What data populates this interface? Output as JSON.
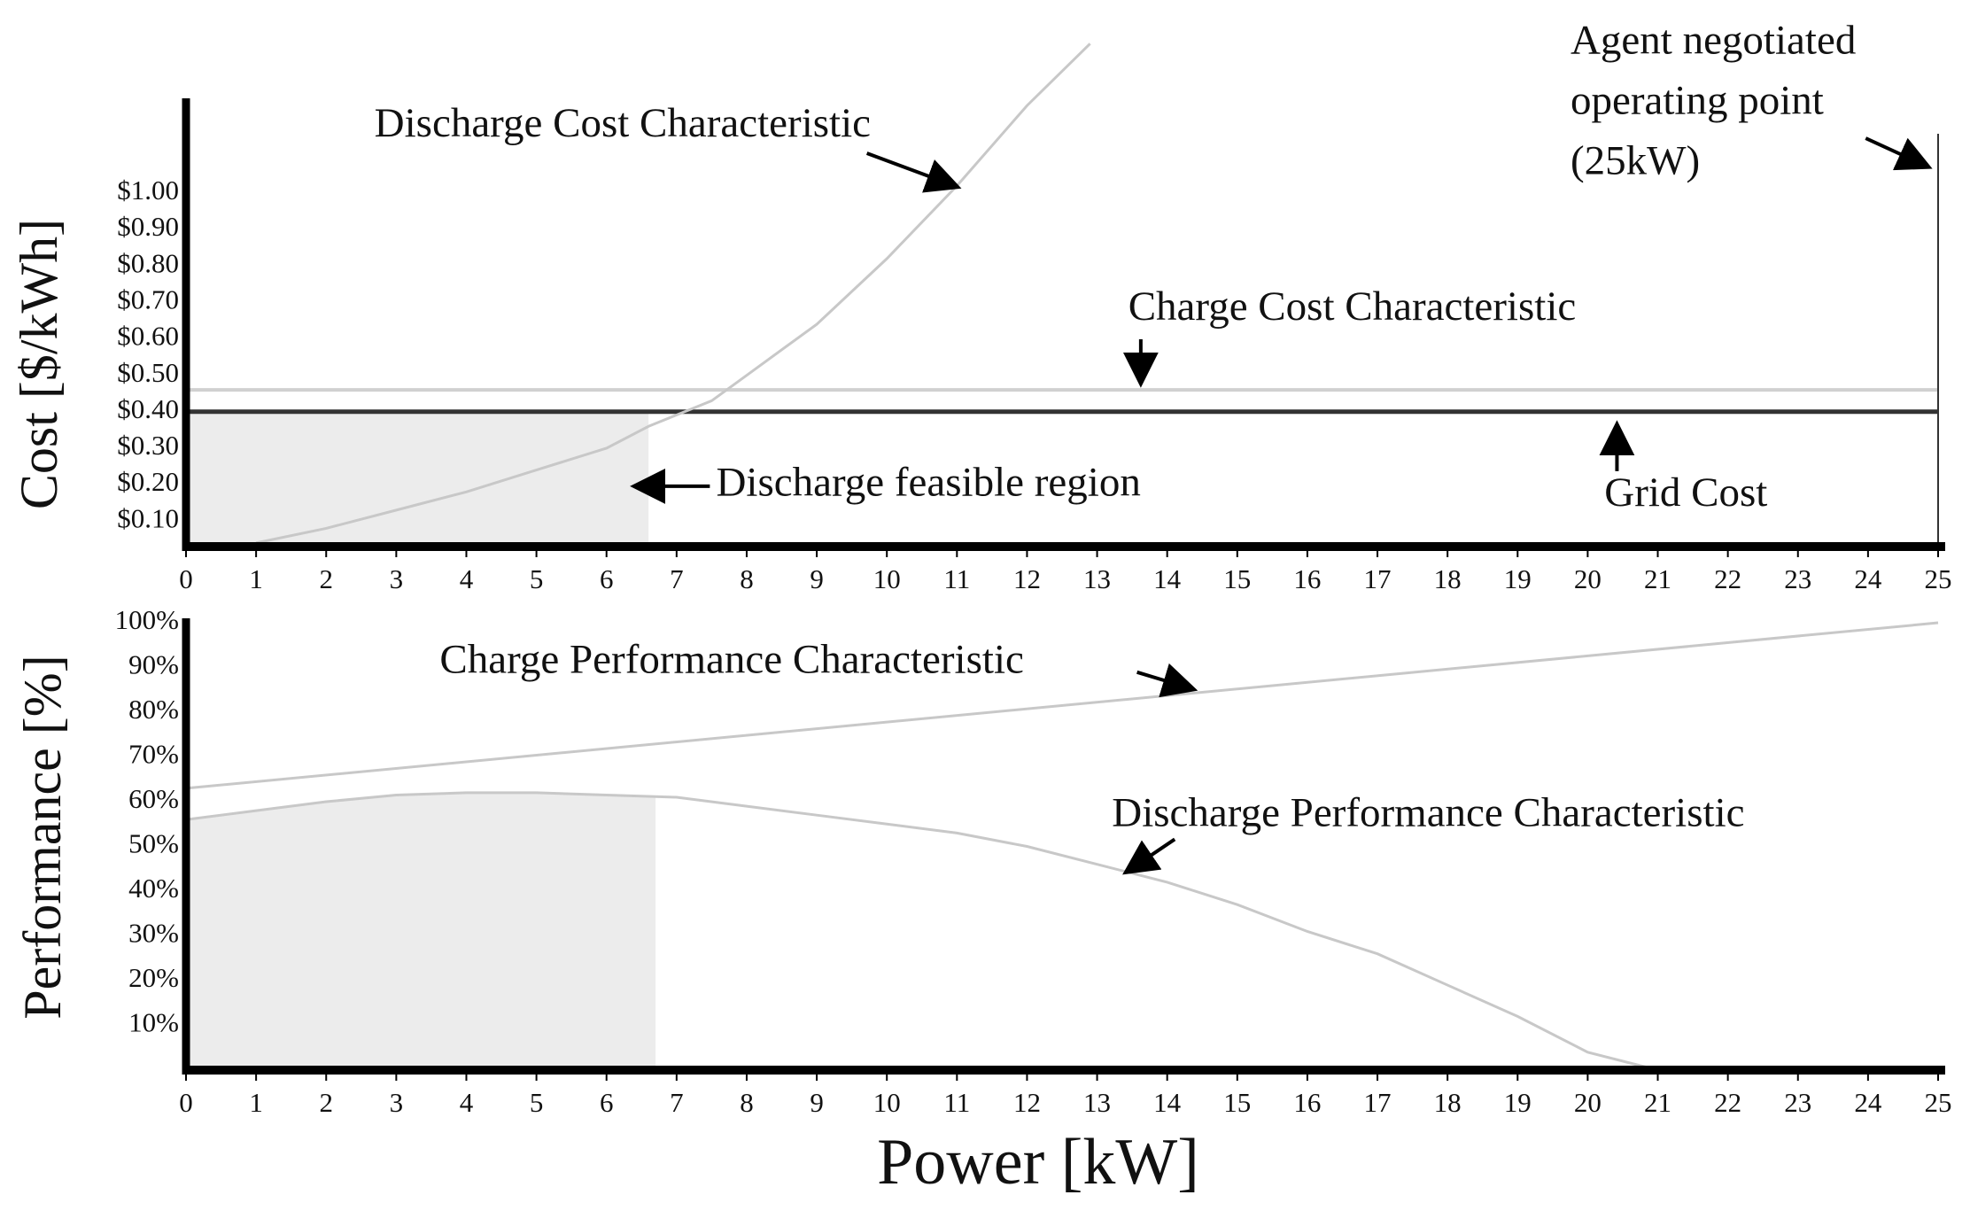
{
  "chart_data": [
    {
      "type": "line",
      "ylabel": "Cost [$/kWh]",
      "xlim": [
        0,
        25
      ],
      "xticks": [
        0,
        1,
        2,
        3,
        4,
        5,
        6,
        7,
        8,
        9,
        10,
        11,
        12,
        13,
        14,
        15,
        16,
        17,
        18,
        19,
        20,
        21,
        22,
        23,
        24,
        25
      ],
      "ylim": [
        0.03,
        1.26
      ],
      "yticks": [
        {
          "value": 0.1,
          "label": "$0.10"
        },
        {
          "value": 0.2,
          "label": "$0.20"
        },
        {
          "value": 0.3,
          "label": "$0.30"
        },
        {
          "value": 0.4,
          "label": "$0.40"
        },
        {
          "value": 0.5,
          "label": "$0.50"
        },
        {
          "value": 0.6,
          "label": "$0.60"
        },
        {
          "value": 0.7,
          "label": "$0.70"
        },
        {
          "value": 0.8,
          "label": "$0.80"
        },
        {
          "value": 0.9,
          "label": "$0.90"
        },
        {
          "value": 1.0,
          "label": "$1.00"
        }
      ],
      "series": [
        {
          "color": "#c8c8c8",
          "x": [
            1,
            2,
            3,
            4,
            5,
            6,
            6.6,
            7.5,
            8,
            9,
            10,
            11,
            12,
            12.9
          ],
          "values": [
            0.04,
            0.08,
            0.13,
            0.18,
            0.24,
            0.3,
            0.36,
            0.43,
            0.5,
            0.64,
            0.82,
            1.02,
            1.24,
            1.41
          ]
        }
      ],
      "reference_lines": [
        {
          "y": 0.46,
          "color": "#d0d0d0"
        },
        {
          "y": 0.4,
          "color": "#333333"
        }
      ],
      "vline_x": 25,
      "shaded_x": [
        0,
        6.6
      ],
      "annotations": [
        {
          "text": "Discharge Cost Characteristic"
        },
        {
          "text": "Charge Cost Characteristic"
        },
        {
          "text": "Discharge feasible region"
        },
        {
          "text": "Grid Cost"
        },
        {
          "lines": [
            "Agent negotiated",
            "operating point",
            "(25kW)"
          ]
        }
      ]
    },
    {
      "type": "line",
      "ylabel": "Performance [%]",
      "xlabel": "Power [kW]",
      "xlim": [
        0,
        25
      ],
      "xticks": [
        0,
        1,
        2,
        3,
        4,
        5,
        6,
        7,
        8,
        9,
        10,
        11,
        12,
        13,
        14,
        15,
        16,
        17,
        18,
        19,
        20,
        21,
        22,
        23,
        24,
        25
      ],
      "ylim": [
        0,
        101
      ],
      "yticks": [
        {
          "value": 10,
          "label": "10%"
        },
        {
          "value": 20,
          "label": "20%"
        },
        {
          "value": 30,
          "label": "30%"
        },
        {
          "value": 40,
          "label": "40%"
        },
        {
          "value": 50,
          "label": "50%"
        },
        {
          "value": 60,
          "label": "60%"
        },
        {
          "value": 70,
          "label": "70%"
        },
        {
          "value": 80,
          "label": "80%"
        },
        {
          "value": 90,
          "label": "90%"
        },
        {
          "value": 100,
          "label": "100%"
        }
      ],
      "series": [
        {
          "color": "#c8c8c8",
          "x": [
            0,
            25
          ],
          "values": [
            63,
            100
          ]
        },
        {
          "color": "#c8c8c8",
          "x": [
            0,
            1,
            2,
            3,
            4,
            5,
            6,
            7,
            8,
            9,
            10,
            11,
            12,
            13,
            14,
            15,
            16,
            17,
            18,
            19,
            20,
            21
          ],
          "values": [
            56,
            58,
            60,
            61.5,
            62,
            62,
            61.5,
            61,
            59,
            57,
            55,
            53,
            50,
            46,
            42,
            37,
            31,
            26,
            19,
            12,
            4,
            0
          ]
        }
      ],
      "shaded_x": [
        0,
        6.7
      ],
      "annotations": [
        {
          "text": "Charge Performance Characteristic"
        },
        {
          "text": "Discharge Performance Characteristic"
        }
      ]
    }
  ]
}
